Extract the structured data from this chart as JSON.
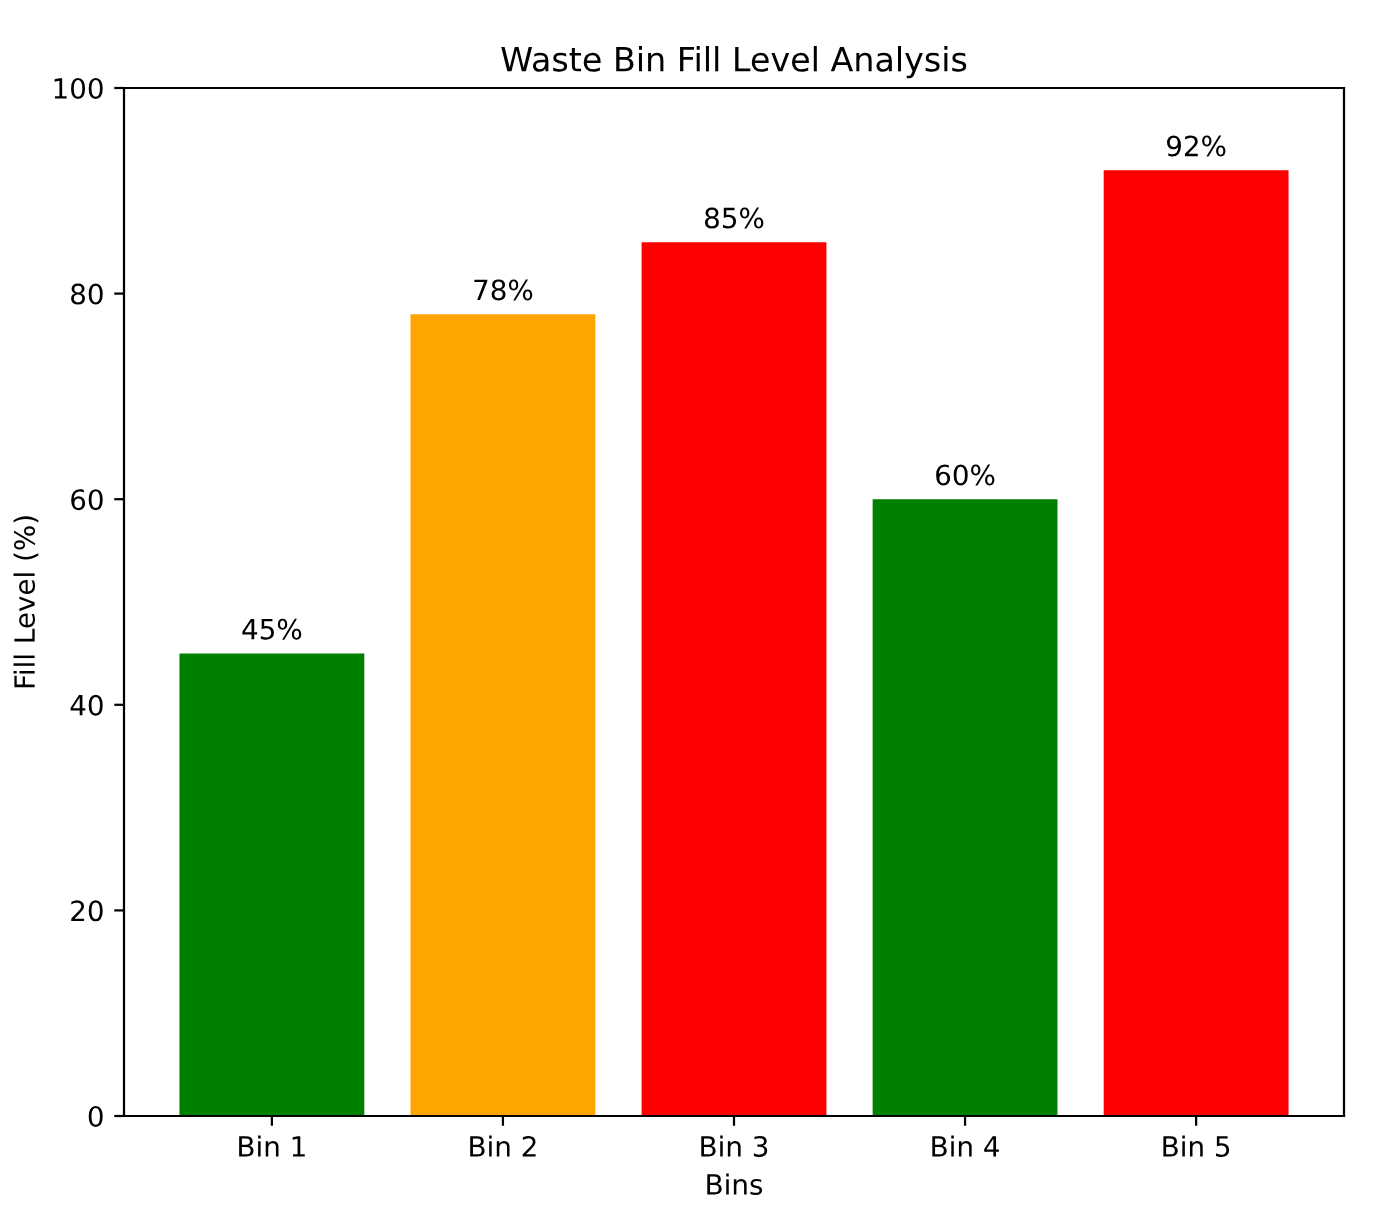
{
  "chart_data": {
    "type": "bar",
    "title": "Waste Bin Fill Level Analysis",
    "xlabel": "Bins",
    "ylabel": "Fill Level (%)",
    "categories": [
      "Bin 1",
      "Bin 2",
      "Bin 3",
      "Bin 4",
      "Bin 5"
    ],
    "values": [
      45,
      78,
      85,
      60,
      92
    ],
    "colors": [
      "#008000",
      "#ffa500",
      "#ff0000",
      "#008000",
      "#ff0000"
    ],
    "value_labels": [
      "45%",
      "78%",
      "85%",
      "60%",
      "92%"
    ],
    "ylim": [
      0,
      100
    ],
    "yticks": [
      0,
      20,
      40,
      60,
      80,
      100
    ],
    "grid": false,
    "legend": false
  }
}
